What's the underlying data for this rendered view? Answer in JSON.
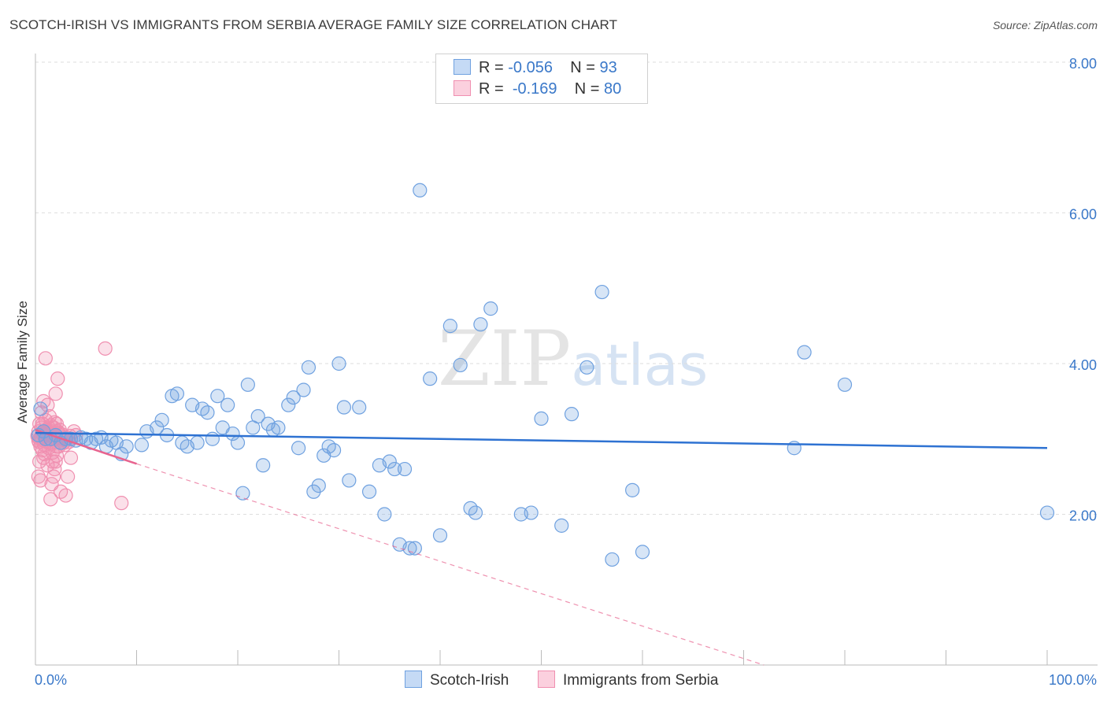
{
  "title": "SCOTCH-IRISH VS IMMIGRANTS FROM SERBIA AVERAGE FAMILY SIZE CORRELATION CHART",
  "source": "Source: ZipAtlas.com",
  "watermark": {
    "zip": "ZIP",
    "atlas": "atlas"
  },
  "legend": {
    "row1": {
      "r_label": "R =",
      "r_value": "-0.056",
      "n_label": "N =",
      "n_value": "93"
    },
    "row2": {
      "r_label": "R =",
      "r_value": "-0.169",
      "n_label": "N =",
      "n_value": "80"
    }
  },
  "chart_data": {
    "type": "scatter",
    "title": "SCOTCH-IRISH VS IMMIGRANTS FROM SERBIA AVERAGE FAMILY SIZE CORRELATION CHART",
    "xlabel": "",
    "ylabel": "Average Family Size",
    "xlim": [
      0,
      100
    ],
    "ylim": [
      0,
      8
    ],
    "x_tick_labels": [
      "0.0%",
      "100.0%"
    ],
    "y_ticks": [
      2,
      4,
      6,
      8
    ],
    "y_tick_labels": [
      "2.00",
      "4.00",
      "6.00",
      "8.00"
    ],
    "colors": {
      "blue": "#6fa1e0",
      "blue_line": "#2e72d2",
      "pink": "#f08fb0",
      "pink_line": "#e8648f",
      "tick_text": "#3a78c9"
    },
    "series": [
      {
        "name": "Scotch-Irish",
        "color": "#6fa1e0",
        "r": -0.056,
        "n": 93,
        "trend": {
          "x": [
            0,
            100
          ],
          "y": [
            3.08,
            2.88
          ]
        },
        "points": [
          [
            0.3,
            3.05
          ],
          [
            0.5,
            3.4
          ],
          [
            0.8,
            3.1
          ],
          [
            1.0,
            3.0
          ],
          [
            1.5,
            3.0
          ],
          [
            2.0,
            3.05
          ],
          [
            2.5,
            2.95
          ],
          [
            3.0,
            3.0
          ],
          [
            3.5,
            3.0
          ],
          [
            4.0,
            2.98
          ],
          [
            4.5,
            3.02
          ],
          [
            5.0,
            3.0
          ],
          [
            5.5,
            2.95
          ],
          [
            6.0,
            3.0
          ],
          [
            6.5,
            3.02
          ],
          [
            7.0,
            2.9
          ],
          [
            7.5,
            2.98
          ],
          [
            8.0,
            2.95
          ],
          [
            8.5,
            2.8
          ],
          [
            9.0,
            2.9
          ],
          [
            10.5,
            2.92
          ],
          [
            11.0,
            3.1
          ],
          [
            12.0,
            3.15
          ],
          [
            12.5,
            3.25
          ],
          [
            13.0,
            3.05
          ],
          [
            13.5,
            3.57
          ],
          [
            14.0,
            3.6
          ],
          [
            14.5,
            2.95
          ],
          [
            15.0,
            2.9
          ],
          [
            15.5,
            3.45
          ],
          [
            16.0,
            2.95
          ],
          [
            16.5,
            3.4
          ],
          [
            17.0,
            3.35
          ],
          [
            17.5,
            3.0
          ],
          [
            18.0,
            3.57
          ],
          [
            18.5,
            3.15
          ],
          [
            19.0,
            3.45
          ],
          [
            19.5,
            3.07
          ],
          [
            20.0,
            2.95
          ],
          [
            20.5,
            2.28
          ],
          [
            21.0,
            3.72
          ],
          [
            21.5,
            3.15
          ],
          [
            22.0,
            3.3
          ],
          [
            22.5,
            2.65
          ],
          [
            23.0,
            3.2
          ],
          [
            23.5,
            3.12
          ],
          [
            24.0,
            3.15
          ],
          [
            25.0,
            3.45
          ],
          [
            25.5,
            3.55
          ],
          [
            26.0,
            2.88
          ],
          [
            26.5,
            3.65
          ],
          [
            27.0,
            3.95
          ],
          [
            27.5,
            2.3
          ],
          [
            28.0,
            2.38
          ],
          [
            28.5,
            2.78
          ],
          [
            29.0,
            2.9
          ],
          [
            29.5,
            2.85
          ],
          [
            30.0,
            4.0
          ],
          [
            30.5,
            3.42
          ],
          [
            31.0,
            2.45
          ],
          [
            32.0,
            3.42
          ],
          [
            33.0,
            2.3
          ],
          [
            34.0,
            2.65
          ],
          [
            34.5,
            2.0
          ],
          [
            35.0,
            2.7
          ],
          [
            35.5,
            2.6
          ],
          [
            36.0,
            1.6
          ],
          [
            36.5,
            2.6
          ],
          [
            37.0,
            1.55
          ],
          [
            37.5,
            1.55
          ],
          [
            38.0,
            6.3
          ],
          [
            39.0,
            3.8
          ],
          [
            40.0,
            1.72
          ],
          [
            41.0,
            4.5
          ],
          [
            42.0,
            3.98
          ],
          [
            43.0,
            2.08
          ],
          [
            43.5,
            2.02
          ],
          [
            44.0,
            4.52
          ],
          [
            45.0,
            4.73
          ],
          [
            48.0,
            2.0
          ],
          [
            49.0,
            2.02
          ],
          [
            50.0,
            3.27
          ],
          [
            52.0,
            1.85
          ],
          [
            53.0,
            3.33
          ],
          [
            54.5,
            3.95
          ],
          [
            56.0,
            4.95
          ],
          [
            57.0,
            1.4
          ],
          [
            59.0,
            2.32
          ],
          [
            60.0,
            1.5
          ],
          [
            75.0,
            2.88
          ],
          [
            76.0,
            4.15
          ],
          [
            80.0,
            3.72
          ],
          [
            100.0,
            2.02
          ]
        ]
      },
      {
        "name": "Immigrants from Serbia",
        "color": "#f08fb0",
        "r": -0.169,
        "n": 80,
        "trend": {
          "x": [
            0,
            10
          ],
          "y": [
            3.12,
            2.67
          ]
        },
        "trend_dashed": {
          "x": [
            10,
            72
          ],
          "y": [
            2.67,
            0
          ]
        },
        "points": [
          [
            0.3,
            3.1
          ],
          [
            0.4,
            3.0
          ],
          [
            0.5,
            2.9
          ],
          [
            0.6,
            3.15
          ],
          [
            0.7,
            3.2
          ],
          [
            0.8,
            3.05
          ],
          [
            0.9,
            2.8
          ],
          [
            1.0,
            3.25
          ],
          [
            1.1,
            3.1
          ],
          [
            1.2,
            3.0
          ],
          [
            1.3,
            2.95
          ],
          [
            1.4,
            3.3
          ],
          [
            1.5,
            3.05
          ],
          [
            1.6,
            3.1
          ],
          [
            1.7,
            2.7
          ],
          [
            1.8,
            3.15
          ],
          [
            1.9,
            2.6
          ],
          [
            2.0,
            3.0
          ],
          [
            2.1,
            3.2
          ],
          [
            2.2,
            3.1
          ],
          [
            2.3,
            2.9
          ],
          [
            2.4,
            3.05
          ],
          [
            2.5,
            3.0
          ],
          [
            0.3,
            2.5
          ],
          [
            0.5,
            2.45
          ],
          [
            0.6,
            3.35
          ],
          [
            0.8,
            3.5
          ],
          [
            1.0,
            4.07
          ],
          [
            1.2,
            3.45
          ],
          [
            1.5,
            2.2
          ],
          [
            1.8,
            2.5
          ],
          [
            2.0,
            3.6
          ],
          [
            2.2,
            3.8
          ],
          [
            2.5,
            2.3
          ],
          [
            2.8,
            2.95
          ],
          [
            3.0,
            2.25
          ],
          [
            3.2,
            2.5
          ],
          [
            3.5,
            2.75
          ],
          [
            3.8,
            3.1
          ],
          [
            4.0,
            3.05
          ],
          [
            0.4,
            3.2
          ],
          [
            0.6,
            3.0
          ],
          [
            0.7,
            2.85
          ],
          [
            0.9,
            3.1
          ],
          [
            1.1,
            3.0
          ],
          [
            1.3,
            3.15
          ],
          [
            1.5,
            2.95
          ],
          [
            1.7,
            3.05
          ],
          [
            1.9,
            3.0
          ],
          [
            2.1,
            2.9
          ],
          [
            0.3,
            2.98
          ],
          [
            0.5,
            3.02
          ],
          [
            0.7,
            3.08
          ],
          [
            0.9,
            2.92
          ],
          [
            1.1,
            3.12
          ],
          [
            1.3,
            2.88
          ],
          [
            1.5,
            3.18
          ],
          [
            1.7,
            2.82
          ],
          [
            1.9,
            3.22
          ],
          [
            2.1,
            2.78
          ],
          [
            2.3,
            3.08
          ],
          [
            2.5,
            2.98
          ],
          [
            2.7,
            3.02
          ],
          [
            2.9,
            2.92
          ],
          [
            3.1,
            3.02
          ],
          [
            3.3,
            2.96
          ],
          [
            3.5,
            3.0
          ],
          [
            0.4,
            2.7
          ],
          [
            0.8,
            2.75
          ],
          [
            1.2,
            2.65
          ],
          [
            1.6,
            2.4
          ],
          [
            2.0,
            2.7
          ],
          [
            6.9,
            4.2
          ],
          [
            8.5,
            2.15
          ],
          [
            2.4,
            3.12
          ],
          [
            2.6,
            3.06
          ],
          [
            3.0,
            2.98
          ],
          [
            3.4,
            3.04
          ],
          [
            0.2,
            3.04
          ],
          [
            0.35,
            2.96
          ]
        ]
      }
    ]
  },
  "bottom_legend": {
    "item1": "Scotch-Irish",
    "item2": "Immigrants from Serbia"
  }
}
